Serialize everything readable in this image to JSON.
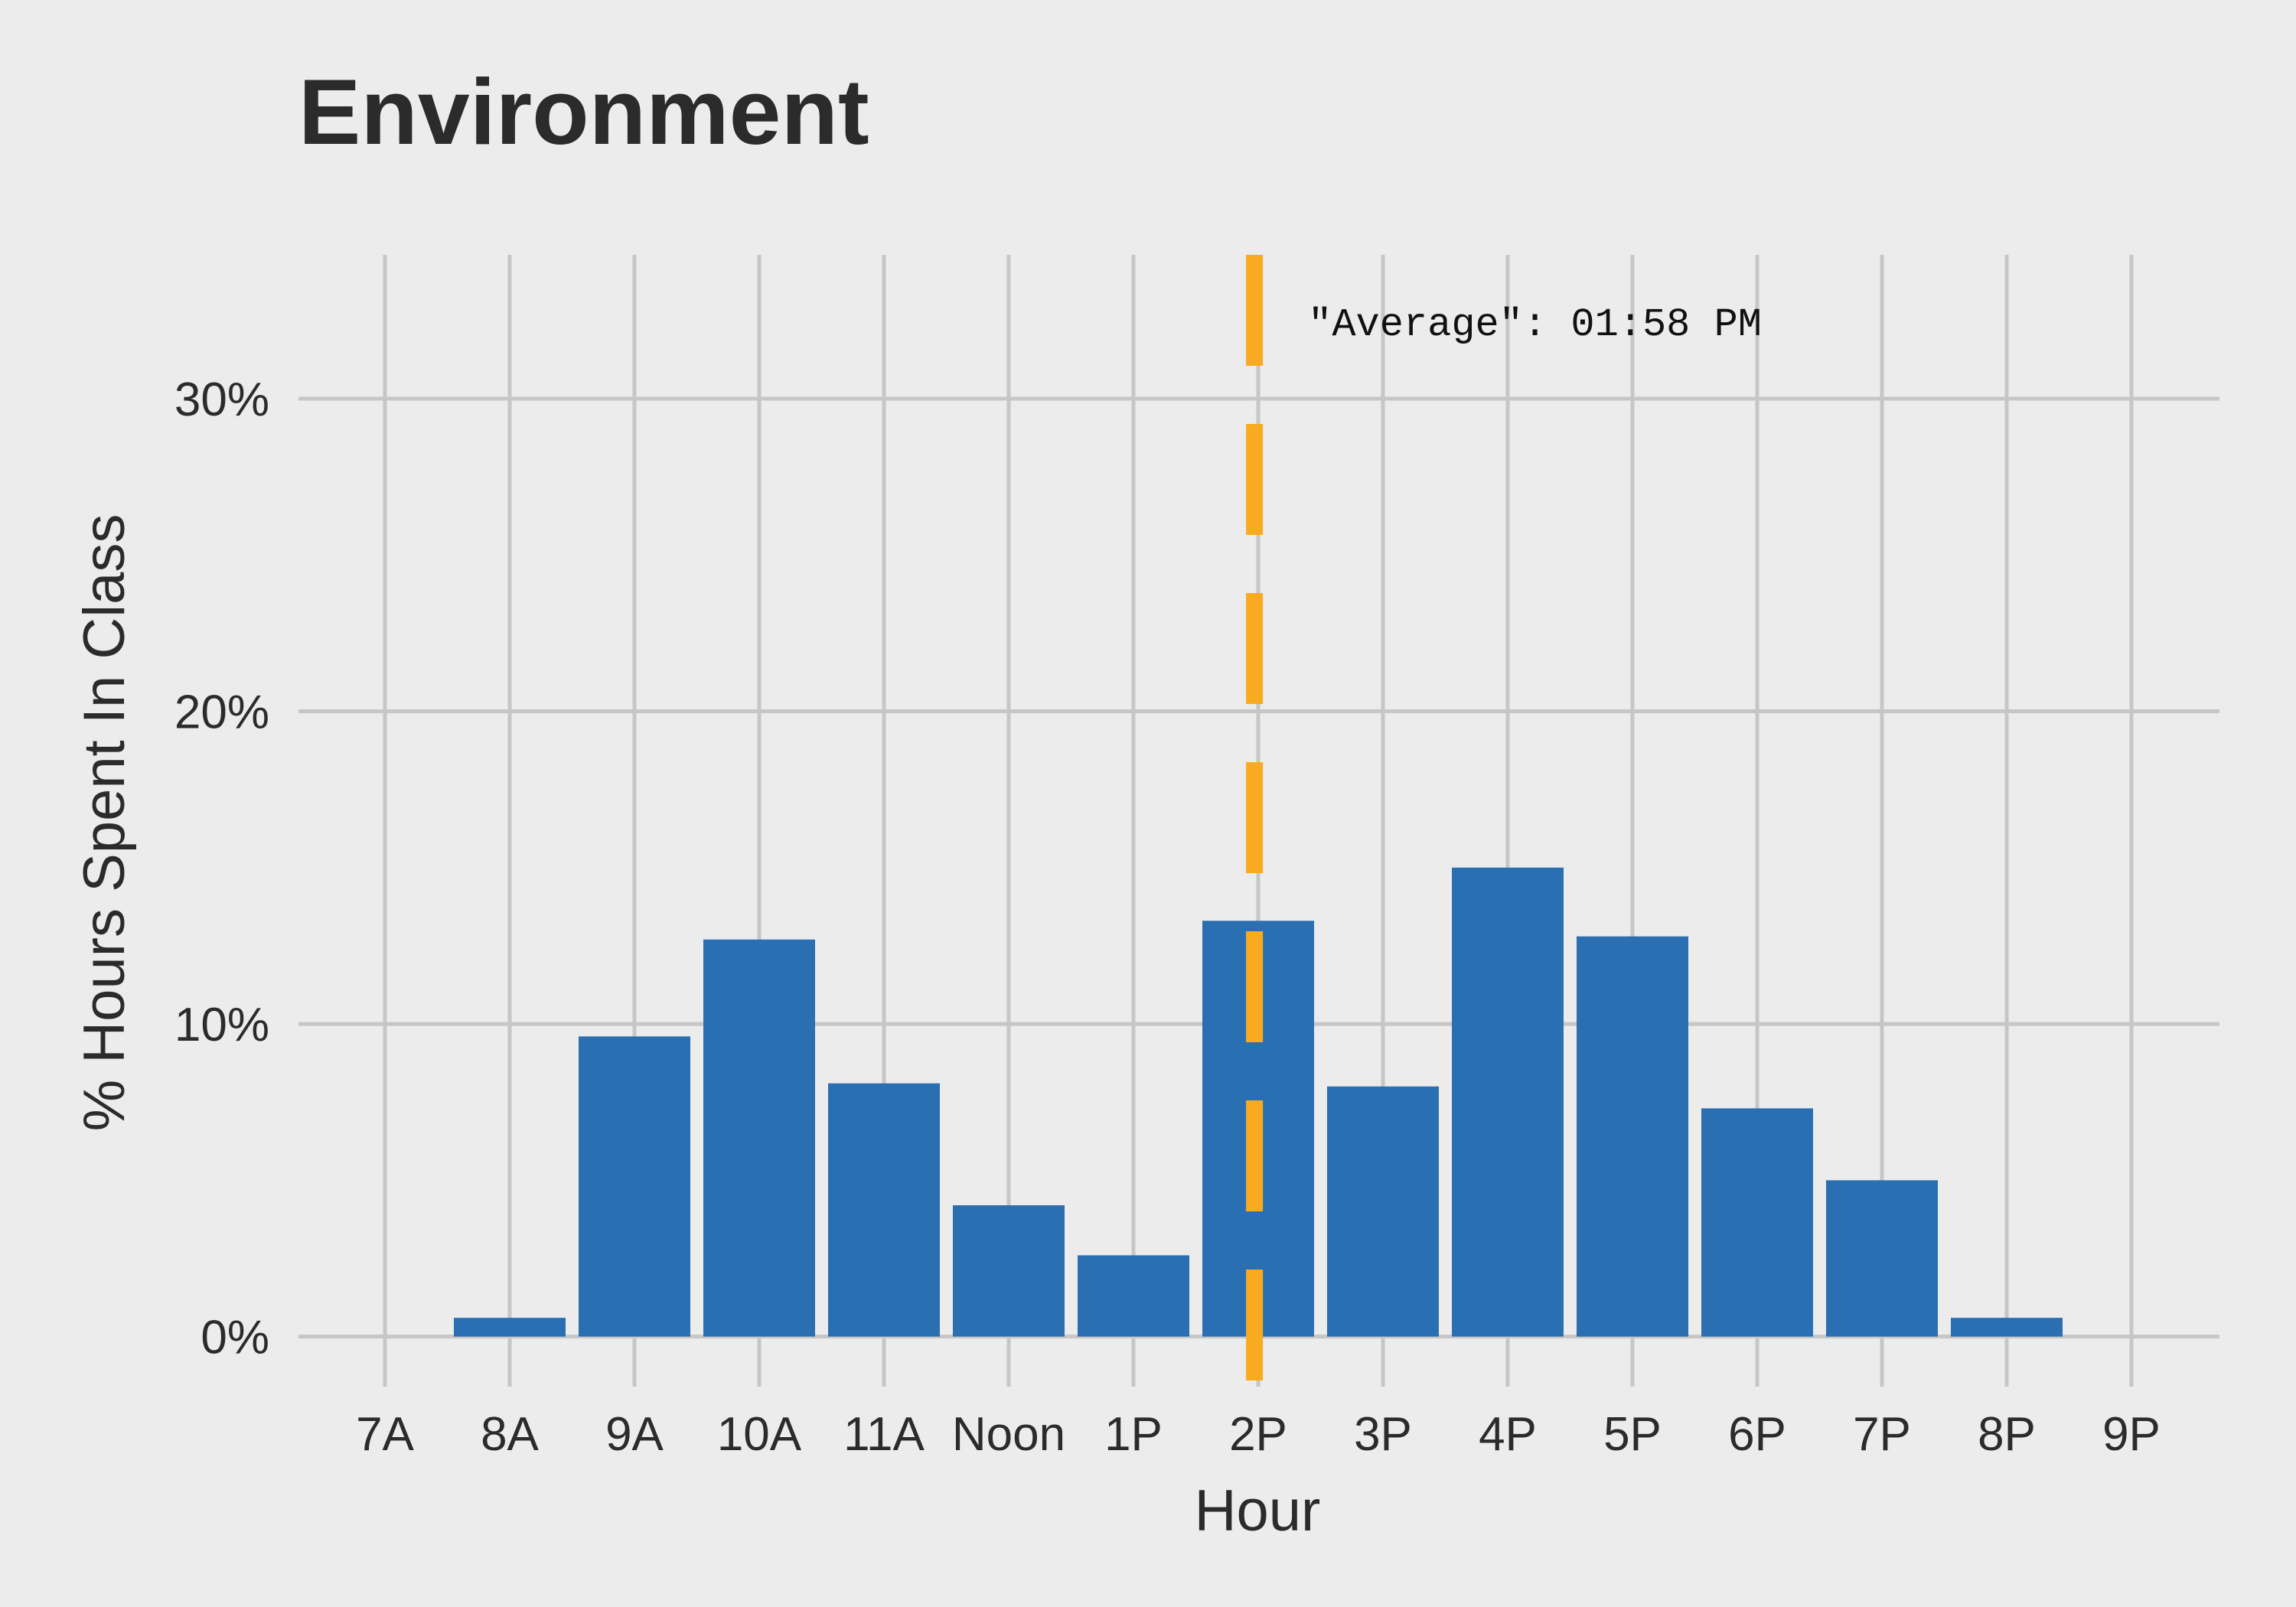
{
  "chart_data": {
    "type": "bar",
    "title": "Environment",
    "xlabel": "Hour",
    "ylabel": "% Hours Spent In Class",
    "categories": [
      "7A",
      "8A",
      "9A",
      "10A",
      "11A",
      "Noon",
      "1P",
      "2P",
      "3P",
      "4P",
      "5P",
      "6P",
      "7P",
      "8P",
      "9P"
    ],
    "values": [
      0.0,
      0.6,
      9.6,
      12.7,
      8.1,
      4.2,
      2.6,
      13.3,
      8.0,
      15.0,
      12.8,
      7.3,
      5.0,
      0.6,
      0.0
    ],
    "y_ticks": [
      0,
      10,
      20,
      30
    ],
    "y_tick_labels": [
      "0%",
      "10%",
      "20%",
      "30%"
    ],
    "ylim": [
      -1.6,
      34.6
    ],
    "grid": true,
    "bar_color": "#2a6fb1",
    "average_line": {
      "position_hours_after_7A": 6.97,
      "label": "\"Average\": 01:58 PM",
      "color": "#f9ab1f",
      "style": "dashed"
    }
  }
}
